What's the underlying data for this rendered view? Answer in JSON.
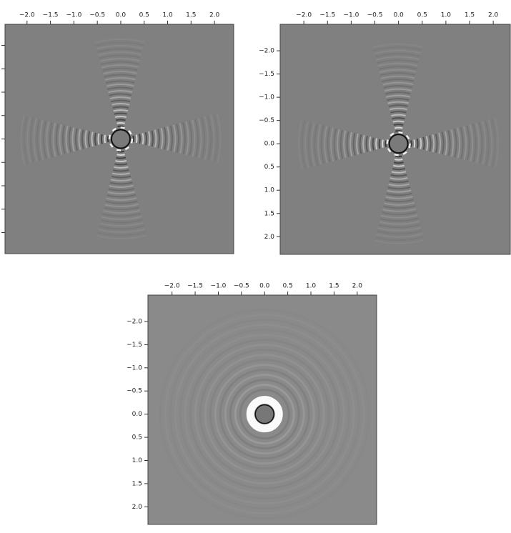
{
  "chart_data": [
    {
      "type": "image",
      "xlim": [
        -2.47,
        2.41
      ],
      "ylim": [
        2.45,
        -2.45
      ],
      "xticks": [
        {
          "value": -2.0,
          "label": "−2.0"
        },
        {
          "value": -1.5,
          "label": "−1.5"
        },
        {
          "value": -1.0,
          "label": "−1.0"
        },
        {
          "value": -0.5,
          "label": "−0.5"
        },
        {
          "value": 0.0,
          "label": "0.0"
        },
        {
          "value": 0.5,
          "label": "0.5"
        },
        {
          "value": 1.0,
          "label": "1.0"
        },
        {
          "value": 1.5,
          "label": "1.5"
        },
        {
          "value": 2.0,
          "label": "2.0"
        }
      ],
      "yticks": [
        {
          "value": -2.0,
          "label": null
        },
        {
          "value": -1.5,
          "label": null
        },
        {
          "value": -1.0,
          "label": null
        },
        {
          "value": -0.5,
          "label": null
        },
        {
          "value": 0.0,
          "label": null
        },
        {
          "value": 0.5,
          "label": null
        },
        {
          "value": 1.0,
          "label": null
        },
        {
          "value": 1.5,
          "label": null
        },
        {
          "value": 2.0,
          "label": null
        }
      ]
    },
    {
      "type": "image",
      "xlim": [
        -2.5,
        2.36
      ],
      "ylim": [
        2.38,
        -2.57
      ],
      "xticks": [
        {
          "value": -2.0,
          "label": "−2.0"
        },
        {
          "value": -1.5,
          "label": "−1.5"
        },
        {
          "value": -1.0,
          "label": "−1.0"
        },
        {
          "value": -0.5,
          "label": "−0.5"
        },
        {
          "value": 0.0,
          "label": "0.0"
        },
        {
          "value": 0.5,
          "label": "0.5"
        },
        {
          "value": 1.0,
          "label": "1.0"
        },
        {
          "value": 1.5,
          "label": "1.5"
        },
        {
          "value": 2.0,
          "label": "2.0"
        }
      ],
      "yticks": [
        {
          "value": -2.0,
          "label": "−2.0"
        },
        {
          "value": -1.5,
          "label": "−1.5"
        },
        {
          "value": -1.0,
          "label": "−1.0"
        },
        {
          "value": -0.5,
          "label": "−0.5"
        },
        {
          "value": 0.0,
          "label": "0.0"
        },
        {
          "value": 0.5,
          "label": "0.5"
        },
        {
          "value": 1.0,
          "label": "1.0"
        },
        {
          "value": 1.5,
          "label": "1.5"
        },
        {
          "value": 2.0,
          "label": "2.0"
        }
      ]
    },
    {
      "type": "image",
      "xlim": [
        -2.52,
        2.42
      ],
      "ylim": [
        2.38,
        -2.57
      ],
      "xticks": [
        {
          "value": -2.0,
          "label": "−2.0"
        },
        {
          "value": -1.5,
          "label": "−1.5"
        },
        {
          "value": -1.0,
          "label": "−1.0"
        },
        {
          "value": -0.5,
          "label": "−0.5"
        },
        {
          "value": 0.0,
          "label": "0.0"
        },
        {
          "value": 0.5,
          "label": "0.5"
        },
        {
          "value": 1.0,
          "label": "1.0"
        },
        {
          "value": 1.5,
          "label": "1.5"
        },
        {
          "value": 2.0,
          "label": "2.0"
        }
      ],
      "yticks": [
        {
          "value": -2.0,
          "label": "−2.0"
        },
        {
          "value": -1.5,
          "label": "−1.5"
        },
        {
          "value": -1.0,
          "label": "−1.0"
        },
        {
          "value": -0.5,
          "label": "−0.5"
        },
        {
          "value": 0.0,
          "label": "0.0"
        },
        {
          "value": 0.5,
          "label": "0.5"
        },
        {
          "value": 1.0,
          "label": "1.0"
        },
        {
          "value": 1.5,
          "label": "1.5"
        },
        {
          "value": 2.0,
          "label": "2.0"
        }
      ]
    }
  ]
}
